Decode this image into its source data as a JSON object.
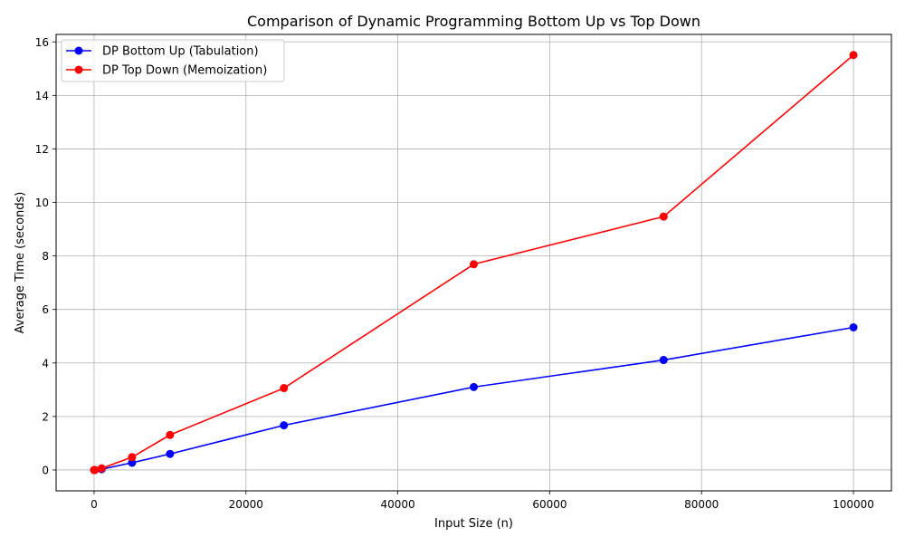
{
  "chart_data": {
    "type": "line",
    "title": "Comparison of Dynamic Programming Bottom Up vs Top Down",
    "xlabel": "Input Size (n)",
    "ylabel": "Average Time (seconds)",
    "xlim": [
      -5000,
      105000
    ],
    "ylim": [
      -0.78,
      16.28
    ],
    "xticks": [
      0,
      20000,
      40000,
      60000,
      80000,
      100000
    ],
    "yticks": [
      0,
      2,
      4,
      6,
      8,
      10,
      12,
      14,
      16
    ],
    "grid": true,
    "legend_position": "top-left",
    "x": [
      10,
      100,
      1000,
      5000,
      10000,
      25000,
      50000,
      75000,
      100000
    ],
    "series": [
      {
        "name": "DP Bottom Up (Tabulation)",
        "color": "#0000ff",
        "marker": "circle",
        "values": [
          0.0,
          0.0,
          0.03,
          0.27,
          0.6,
          1.67,
          3.1,
          4.11,
          5.33
        ]
      },
      {
        "name": "DP Top Down (Memoization)",
        "color": "#ff0000",
        "marker": "circle",
        "values": [
          0.0,
          0.0,
          0.06,
          0.48,
          1.31,
          3.06,
          7.69,
          9.47,
          15.51
        ]
      }
    ]
  }
}
